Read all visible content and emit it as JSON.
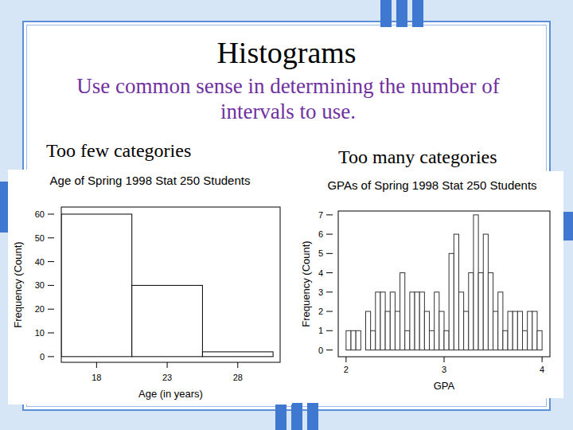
{
  "slide": {
    "title": "Histograms",
    "text": "Use common sense in determining the number of intervals to use.",
    "captions": [
      "Too few categories",
      "Too many categories"
    ]
  },
  "chart_data": [
    {
      "type": "histogram",
      "title": "Age of Spring 1998 Stat 250 Students",
      "xlabel": "Age (in years)",
      "ylabel": "Frequency (Count)",
      "bins": [
        15.5,
        20.5,
        25.5,
        30.5
      ],
      "values": [
        60,
        30,
        2
      ],
      "xlim": [
        15.5,
        31
      ],
      "ylim": [
        -2.4,
        63
      ],
      "xticks": [
        18,
        23,
        28
      ],
      "yticks": [
        0,
        10,
        20,
        30,
        40,
        50,
        60
      ],
      "color": "#000000"
    },
    {
      "type": "histogram",
      "title": "GPAs of Spring 1998 Stat 250 Students",
      "xlabel": "GPA",
      "ylabel": "Frequency (Count)",
      "bins": [
        2,
        2.05,
        2.1,
        2.15,
        2.2,
        2.25,
        2.3,
        2.35,
        2.4,
        2.45,
        2.5,
        2.55,
        2.6,
        2.65,
        2.7,
        2.75,
        2.8,
        2.85,
        2.9,
        2.95,
        3,
        3.05,
        3.1,
        3.15,
        3.2,
        3.25,
        3.3,
        3.35,
        3.4,
        3.45,
        3.5,
        3.55,
        3.6,
        3.65,
        3.7,
        3.75,
        3.8,
        3.85,
        3.9,
        3.95,
        4
      ],
      "values": [
        1,
        1,
        1,
        0,
        2,
        1,
        3,
        3,
        2,
        3,
        2,
        4,
        1,
        3,
        3,
        3,
        2,
        1,
        3,
        2,
        1,
        5,
        6,
        3,
        2,
        4,
        7,
        4,
        6,
        4,
        2,
        3,
        1,
        2,
        2,
        2,
        1,
        2,
        2,
        1
      ],
      "xlim": [
        1.92,
        4.08
      ],
      "ylim": [
        -0.35,
        7.2
      ],
      "xticks": [
        2,
        3,
        4
      ],
      "yticks": [
        0,
        1,
        2,
        3,
        4,
        5,
        6,
        7
      ],
      "color": "#333333"
    }
  ]
}
